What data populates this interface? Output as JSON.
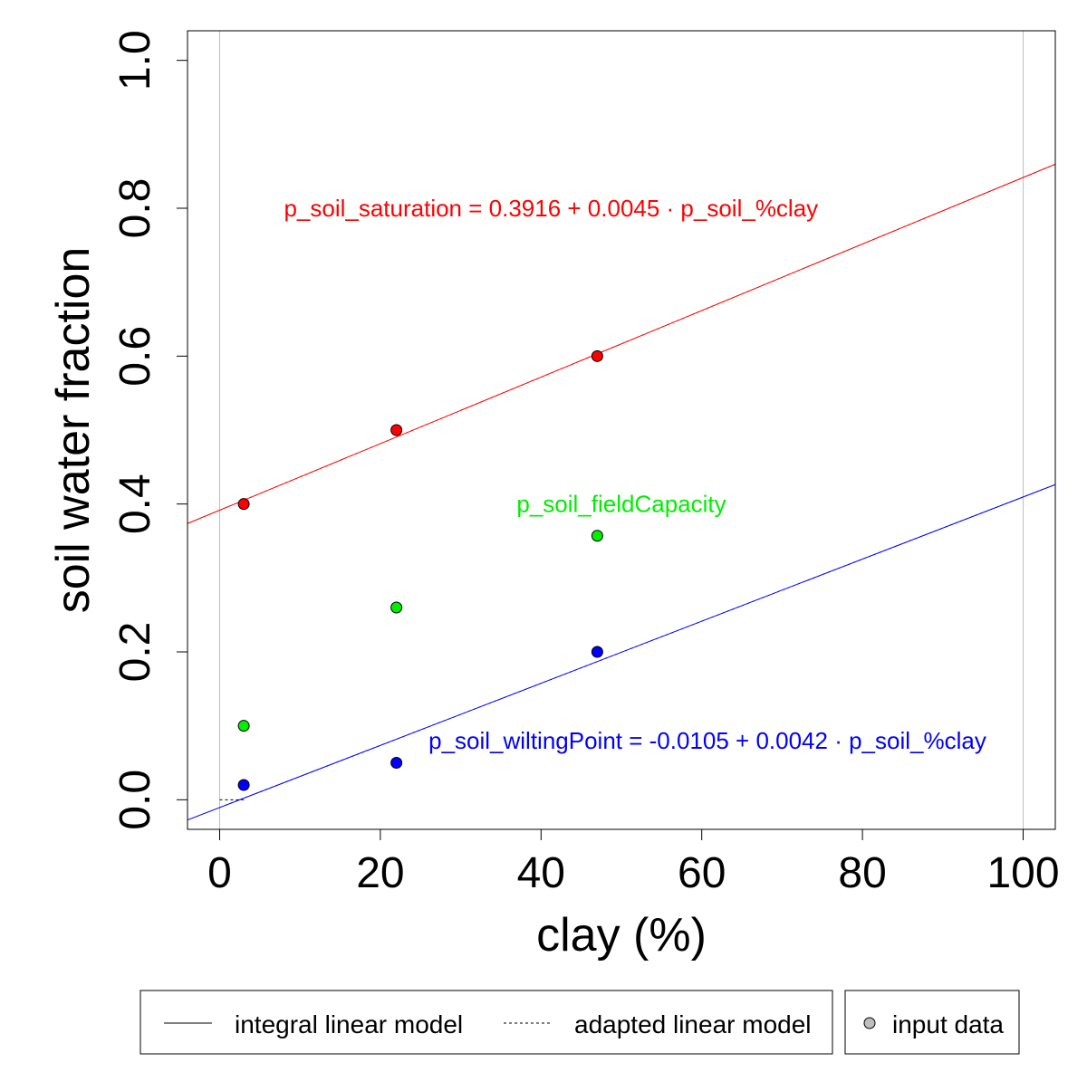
{
  "chart_data": {
    "type": "scatter",
    "title": "",
    "xlabel": "clay (%)",
    "ylabel": "soil water fraction",
    "xlim": [
      -4,
      104
    ],
    "ylim": [
      -0.04,
      1.04
    ],
    "x_ticks": [
      0,
      20,
      40,
      60,
      80,
      100
    ],
    "x_tick_labels": [
      "0",
      "20",
      "40",
      "60",
      "80",
      "100"
    ],
    "y_ticks": [
      0.0,
      0.2,
      0.4,
      0.6,
      0.8,
      1.0
    ],
    "y_tick_labels": [
      "0.0",
      "0.2",
      "0.4",
      "0.6",
      "0.8",
      "1.0"
    ],
    "reference_vlines": [
      0,
      100
    ],
    "grid": false,
    "series": [
      {
        "name": "p_soil_saturation",
        "color": "#ff0000",
        "points": [
          {
            "x": 3,
            "y": 0.4
          },
          {
            "x": 22,
            "y": 0.5
          },
          {
            "x": 47,
            "y": 0.6
          }
        ],
        "intercept": 0.3916,
        "slope": 0.0045,
        "annotation": "p_soil_saturation = 0.3916 + 0.0045 · p_soil_%clay",
        "annotation_anchor": "start"
      },
      {
        "name": "p_soil_fieldCapacity",
        "color": "#00ee00",
        "points": [
          {
            "x": 3,
            "y": 0.1
          },
          {
            "x": 22,
            "y": 0.26
          },
          {
            "x": 47,
            "y": 0.357
          }
        ],
        "annotation": "p_soil_fieldCapacity",
        "annotation_anchor": "middle"
      },
      {
        "name": "p_soil_wiltingPoint",
        "color": "#0000ff",
        "points": [
          {
            "x": 3,
            "y": 0.02
          },
          {
            "x": 22,
            "y": 0.05
          },
          {
            "x": 47,
            "y": 0.2
          }
        ],
        "intercept": -0.0105,
        "slope": 0.0042,
        "annotation": "p_soil_wiltingPoint = -0.0105 + 0.0042 · p_soil_%clay",
        "annotation_anchor": "start"
      }
    ],
    "annotation_positions": [
      {
        "series": 0,
        "x": 8,
        "y": 0.8
      },
      {
        "series": 1,
        "x": 50,
        "y": 0.4
      },
      {
        "series": 2,
        "x": 26,
        "y": 0.08
      }
    ],
    "legend": {
      "placement": "bottom",
      "items": [
        {
          "label": "integral linear model",
          "style": "solid-line"
        },
        {
          "label": "adapted linear model",
          "style": "dashed-line"
        },
        {
          "label": "input data",
          "style": "point"
        }
      ]
    }
  }
}
